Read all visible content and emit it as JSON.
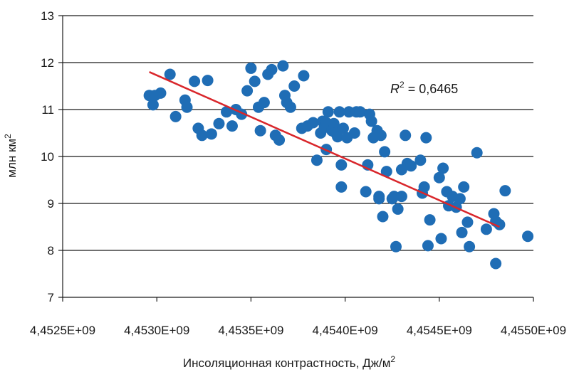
{
  "chart_data": {
    "type": "scatter",
    "title": "",
    "xlabel": "Инсоляционная контрастность, Дж/м",
    "xlabel_sup": "2",
    "ylabel": "млн  км",
    "ylabel_sup": "2",
    "xlim": [
      4452500000,
      4455000000
    ],
    "ylim": [
      7,
      13
    ],
    "x_ticks": [
      4452500000,
      4453000000,
      4453500000,
      4454000000,
      4454500000,
      4455000000
    ],
    "x_tick_labels": [
      "4,4525E+09",
      "4,4530E+09",
      "4,4535E+09",
      "4,4540E+09",
      "4,4545E+09",
      "4,4550E+09"
    ],
    "y_ticks": [
      7,
      8,
      9,
      10,
      11,
      12,
      13
    ],
    "y_tick_labels": [
      "7",
      "8",
      "9",
      "10",
      "11",
      "12",
      "13"
    ],
    "grid": "horizontal",
    "legend": "none",
    "point_color": "#1f6db5",
    "trend_color": "#d9262b",
    "trendline": {
      "x": [
        4452960000,
        4454820000
      ],
      "y": [
        11.8,
        8.5
      ]
    },
    "annotation": {
      "text": "R",
      "sup": "2",
      "rest": " = 0,6465"
    },
    "points": [
      [
        4452960000,
        11.3
      ],
      [
        4452980000,
        11.1
      ],
      [
        4452990000,
        11.3
      ],
      [
        4453020000,
        11.35
      ],
      [
        4453070000,
        11.75
      ],
      [
        4453100000,
        10.85
      ],
      [
        4453150000,
        11.2
      ],
      [
        4453160000,
        11.05
      ],
      [
        4453200000,
        11.6
      ],
      [
        4453220000,
        10.6
      ],
      [
        4453240000,
        10.45
      ],
      [
        4453270000,
        11.62
      ],
      [
        4453290000,
        10.48
      ],
      [
        4453330000,
        10.7
      ],
      [
        4453370000,
        10.95
      ],
      [
        4453400000,
        10.65
      ],
      [
        4453420000,
        11.0
      ],
      [
        4453450000,
        10.9
      ],
      [
        4453480000,
        11.4
      ],
      [
        4453500000,
        11.88
      ],
      [
        4453520000,
        11.6
      ],
      [
        4453540000,
        11.05
      ],
      [
        4453550000,
        10.55
      ],
      [
        4453570000,
        11.15
      ],
      [
        4453590000,
        11.75
      ],
      [
        4453610000,
        11.85
      ],
      [
        4453630000,
        10.45
      ],
      [
        4453650000,
        10.35
      ],
      [
        4453670000,
        11.93
      ],
      [
        4453680000,
        11.3
      ],
      [
        4453690000,
        11.15
      ],
      [
        4453710000,
        11.05
      ],
      [
        4453730000,
        11.5
      ],
      [
        4453780000,
        11.72
      ],
      [
        4453770000,
        10.6
      ],
      [
        4453800000,
        10.65
      ],
      [
        4453830000,
        10.72
      ],
      [
        4453850000,
        9.92
      ],
      [
        4453870000,
        10.5
      ],
      [
        4453880000,
        10.75
      ],
      [
        4453890000,
        10.62
      ],
      [
        4453900000,
        10.72
      ],
      [
        4453900000,
        10.15
      ],
      [
        4453910000,
        10.95
      ],
      [
        4453930000,
        10.55
      ],
      [
        4453940000,
        10.7
      ],
      [
        4453950000,
        10.5
      ],
      [
        4453960000,
        10.42
      ],
      [
        4453970000,
        10.95
      ],
      [
        4453980000,
        9.82
      ],
      [
        4453980000,
        9.35
      ],
      [
        4453990000,
        10.6
      ],
      [
        4454010000,
        10.4
      ],
      [
        4454020000,
        10.95
      ],
      [
        4454050000,
        10.5
      ],
      [
        4454060000,
        10.95
      ],
      [
        4454080000,
        10.95
      ],
      [
        4454110000,
        9.25
      ],
      [
        4454120000,
        9.82
      ],
      [
        4454130000,
        10.9
      ],
      [
        4454140000,
        10.75
      ],
      [
        4454150000,
        10.4
      ],
      [
        4454170000,
        10.55
      ],
      [
        4454180000,
        9.1
      ],
      [
        4454180000,
        9.15
      ],
      [
        4454190000,
        10.45
      ],
      [
        4454200000,
        8.72
      ],
      [
        4454210000,
        10.1
      ],
      [
        4454220000,
        9.68
      ],
      [
        4454250000,
        9.1
      ],
      [
        4454260000,
        9.15
      ],
      [
        4454270000,
        8.08
      ],
      [
        4454280000,
        8.88
      ],
      [
        4454300000,
        9.15
      ],
      [
        4454300000,
        9.72
      ],
      [
        4454320000,
        10.45
      ],
      [
        4454330000,
        9.85
      ],
      [
        4454350000,
        9.8
      ],
      [
        4454400000,
        9.92
      ],
      [
        4454410000,
        9.22
      ],
      [
        4454420000,
        9.35
      ],
      [
        4454430000,
        10.4
      ],
      [
        4454440000,
        8.1
      ],
      [
        4454450000,
        8.65
      ],
      [
        4454500000,
        9.55
      ],
      [
        4454510000,
        8.25
      ],
      [
        4454520000,
        9.75
      ],
      [
        4454540000,
        9.25
      ],
      [
        4454550000,
        8.95
      ],
      [
        4454570000,
        9.15
      ],
      [
        4454590000,
        8.92
      ],
      [
        4454610000,
        9.1
      ],
      [
        4454620000,
        8.38
      ],
      [
        4454630000,
        9.35
      ],
      [
        4454650000,
        8.6
      ],
      [
        4454660000,
        8.08
      ],
      [
        4454700000,
        10.08
      ],
      [
        4454750000,
        8.45
      ],
      [
        4454790000,
        8.78
      ],
      [
        4454800000,
        8.62
      ],
      [
        4454800000,
        7.72
      ],
      [
        4454820000,
        8.55
      ],
      [
        4454850000,
        9.27
      ],
      [
        4454970000,
        8.3
      ]
    ]
  }
}
